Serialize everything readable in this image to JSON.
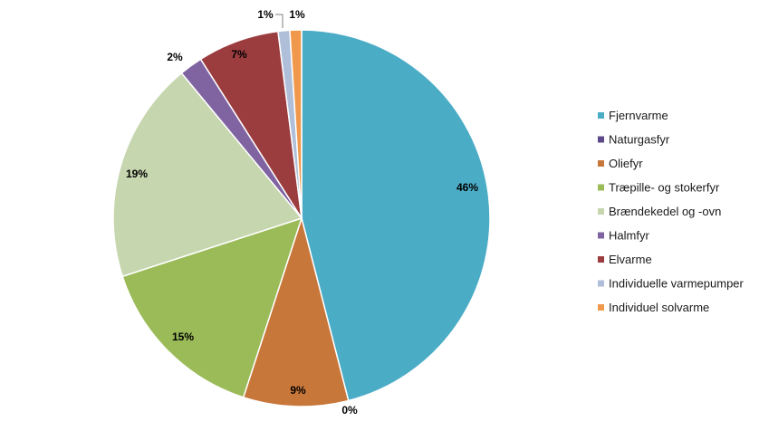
{
  "chart_data": {
    "type": "pie",
    "title": "",
    "legend_position": "right",
    "slices": [
      {
        "name": "Fjernvarme",
        "value": 46,
        "label": "46%",
        "color": "#4BACC6"
      },
      {
        "name": "Naturgasfyr",
        "value": 0,
        "label": "0%",
        "color": "#5E4A8B"
      },
      {
        "name": "Oliefyr",
        "value": 9,
        "label": "9%",
        "color": "#C8773A"
      },
      {
        "name": "Træpille- og stokerfyr",
        "value": 15,
        "label": "15%",
        "color": "#9BBB59"
      },
      {
        "name": "Brændekedel og -ovn",
        "value": 19,
        "label": "19%",
        "color": "#C6D6AE"
      },
      {
        "name": "Halmfyr",
        "value": 2,
        "label": "2%",
        "color": "#8064A2"
      },
      {
        "name": "Elvarme",
        "value": 7,
        "label": "7%",
        "color": "#9B3D3F"
      },
      {
        "name": "Individuelle varmepumper",
        "value": 1,
        "label": "1%",
        "color": "#AFBFD9"
      },
      {
        "name": "Individuel solvarme",
        "value": 1,
        "label": "1%",
        "color": "#F0994C"
      }
    ]
  }
}
